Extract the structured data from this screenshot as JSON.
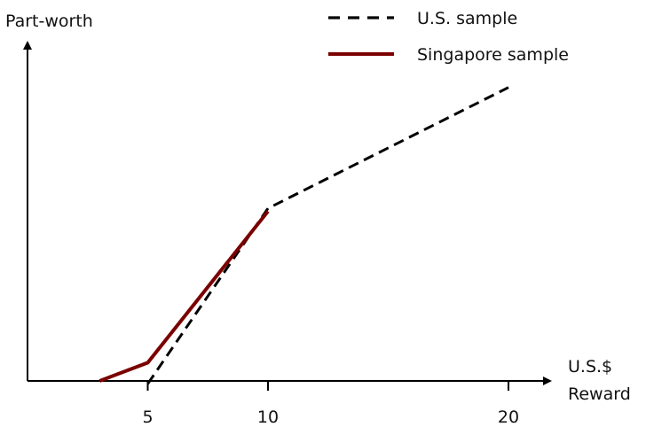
{
  "chart_data": {
    "type": "line",
    "title": "",
    "ylabel": "Part-worth",
    "xlabel": [
      "U.S.$",
      "Reward"
    ],
    "x_ticks": [
      5,
      10,
      20
    ],
    "y_ticks": [],
    "xlim": [
      0,
      20
    ],
    "ylim": [
      0,
      10
    ],
    "grid": false,
    "legend": "top-right",
    "series": [
      {
        "name": "U.S. sample",
        "style": "dashed",
        "color": "#000000",
        "points": [
          [
            5,
            -0.1
          ],
          [
            10,
            5.85
          ],
          [
            20,
            9.95
          ]
        ]
      },
      {
        "name": "Singapore sample",
        "style": "solid",
        "color": "#7b0000",
        "points": [
          [
            3,
            0
          ],
          [
            5,
            0.62
          ],
          [
            10,
            5.75
          ]
        ]
      }
    ]
  }
}
